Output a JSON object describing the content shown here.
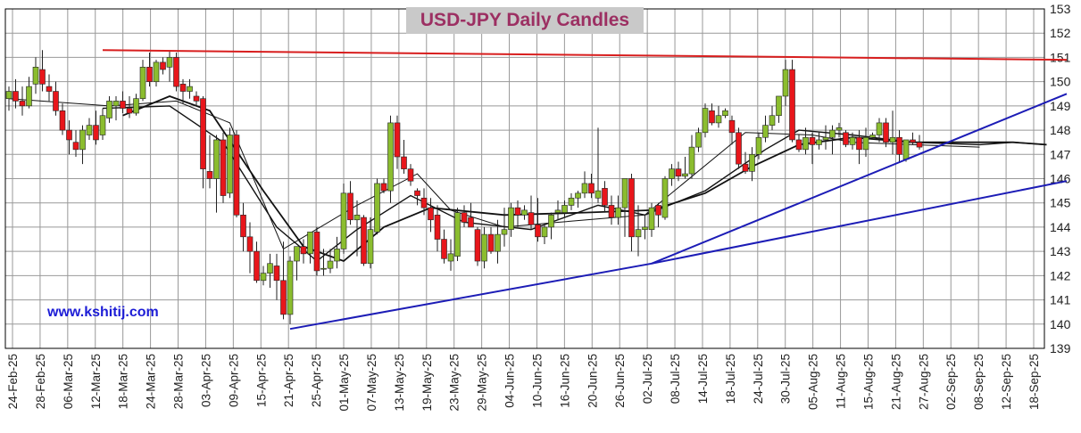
{
  "chart_data": {
    "type": "candlestick",
    "title": "USD-JPY Daily Candles",
    "watermark": "www.kshitij.com",
    "ylim": [
      139,
      153
    ],
    "y_ticks": [
      139,
      140,
      141,
      142,
      143,
      144,
      145,
      146,
      147,
      148,
      149,
      150,
      151,
      152,
      153
    ],
    "x_ticks": [
      "24-Feb-25",
      "28-Feb-25",
      "06-Mar-25",
      "12-Mar-25",
      "18-Mar-25",
      "24-Mar-25",
      "28-Mar-25",
      "03-Apr-25",
      "09-Apr-25",
      "15-Apr-25",
      "21-Apr-25",
      "25-Apr-25",
      "01-May-25",
      "07-May-25",
      "13-May-25",
      "19-May-25",
      "23-May-25",
      "29-May-25",
      "04-Jun-25",
      "10-Jun-25",
      "16-Jun-25",
      "20-Jun-25",
      "26-Jun-25",
      "02-Jul-25",
      "08-Jul-25",
      "14-Jul-25",
      "18-Jul-25",
      "24-Jul-25",
      "30-Jul-25",
      "05-Aug-25",
      "11-Aug-25",
      "15-Aug-25",
      "21-Aug-25",
      "27-Aug-25",
      "02-Sep-25",
      "08-Sep-25",
      "12-Sep-25",
      "18-Sep-25"
    ],
    "grid": true,
    "candles": [
      [
        149.3,
        149.8,
        148.8,
        149.6
      ],
      [
        149.6,
        150.1,
        148.9,
        149.2
      ],
      [
        149.2,
        149.8,
        148.6,
        149.0
      ],
      [
        149.0,
        150.2,
        148.9,
        149.8
      ],
      [
        149.9,
        151.0,
        149.5,
        150.6
      ],
      [
        150.5,
        151.3,
        149.6,
        149.9
      ],
      [
        149.8,
        150.3,
        149.2,
        149.6
      ],
      [
        149.6,
        150.0,
        148.6,
        148.8
      ],
      [
        148.8,
        149.1,
        147.8,
        148.0
      ],
      [
        148.0,
        148.4,
        147.0,
        147.6
      ],
      [
        147.5,
        148.0,
        146.9,
        147.2
      ],
      [
        147.2,
        148.2,
        146.6,
        148.0
      ],
      [
        147.8,
        148.5,
        147.6,
        148.2
      ],
      [
        148.2,
        148.8,
        147.4,
        147.6
      ],
      [
        147.8,
        148.9,
        147.6,
        148.6
      ],
      [
        148.5,
        149.4,
        148.3,
        149.2
      ],
      [
        149.0,
        149.4,
        148.4,
        149.2
      ],
      [
        149.2,
        149.6,
        148.7,
        148.9
      ],
      [
        148.9,
        149.4,
        148.5,
        148.7
      ],
      [
        148.7,
        149.5,
        148.6,
        149.3
      ],
      [
        149.3,
        150.9,
        149.2,
        150.6
      ],
      [
        150.6,
        151.2,
        149.8,
        150.0
      ],
      [
        150.0,
        150.9,
        149.8,
        150.8
      ],
      [
        150.8,
        151.0,
        150.3,
        150.5
      ],
      [
        150.6,
        151.3,
        150.0,
        151.0
      ],
      [
        151.0,
        151.2,
        149.6,
        149.8
      ],
      [
        149.9,
        150.1,
        149.1,
        149.6
      ],
      [
        149.6,
        150.1,
        149.3,
        149.8
      ],
      [
        149.4,
        149.6,
        149.0,
        149.2
      ],
      [
        149.3,
        149.4,
        145.6,
        146.4
      ],
      [
        146.3,
        147.8,
        145.6,
        146.0
      ],
      [
        146.0,
        147.8,
        144.6,
        147.6
      ],
      [
        147.6,
        147.9,
        145.0,
        145.3
      ],
      [
        145.4,
        148.1,
        145.2,
        147.8
      ],
      [
        147.8,
        148.0,
        144.4,
        144.5
      ],
      [
        144.5,
        145.0,
        143.0,
        143.6
      ],
      [
        143.6,
        144.2,
        142.1,
        143.0
      ],
      [
        143.0,
        143.4,
        141.7,
        141.8
      ],
      [
        141.8,
        142.4,
        141.6,
        142.1
      ],
      [
        142.1,
        142.9,
        141.5,
        142.5
      ],
      [
        142.4,
        142.9,
        141.0,
        141.8
      ],
      [
        141.8,
        143.4,
        140.2,
        140.4
      ],
      [
        140.4,
        142.8,
        140.0,
        142.6
      ],
      [
        142.6,
        143.2,
        141.8,
        143.2
      ],
      [
        143.2,
        143.5,
        142.5,
        142.9
      ],
      [
        142.9,
        143.8,
        142.5,
        143.8
      ],
      [
        143.8,
        144.0,
        142.0,
        142.2
      ],
      [
        142.3,
        143.1,
        142.0,
        142.3
      ],
      [
        142.3,
        143.1,
        142.1,
        142.6
      ],
      [
        142.6,
        143.6,
        142.3,
        143.1
      ],
      [
        143.1,
        145.8,
        142.9,
        145.4
      ],
      [
        145.4,
        145.9,
        144.1,
        144.3
      ],
      [
        144.3,
        145.1,
        142.8,
        144.5
      ],
      [
        144.4,
        144.5,
        142.4,
        142.5
      ],
      [
        142.5,
        144.4,
        142.3,
        143.9
      ],
      [
        143.8,
        146.0,
        143.7,
        145.8
      ],
      [
        145.8,
        146.0,
        145.4,
        145.5
      ],
      [
        145.5,
        148.6,
        145.0,
        148.3
      ],
      [
        148.3,
        148.6,
        146.4,
        146.9
      ],
      [
        146.9,
        147.6,
        146.2,
        146.4
      ],
      [
        146.4,
        146.6,
        145.7,
        145.9
      ],
      [
        145.5,
        145.6,
        144.9,
        145.3
      ],
      [
        145.2,
        145.6,
        144.5,
        144.8
      ],
      [
        144.8,
        145.2,
        143.8,
        144.3
      ],
      [
        144.5,
        144.9,
        143.0,
        143.5
      ],
      [
        143.5,
        143.9,
        142.5,
        142.7
      ],
      [
        142.6,
        143.5,
        142.2,
        142.9
      ],
      [
        142.8,
        144.8,
        142.6,
        144.6
      ],
      [
        144.6,
        144.9,
        144.0,
        144.2
      ],
      [
        144.4,
        145.0,
        144.0,
        144.0
      ],
      [
        143.9,
        144.0,
        142.4,
        142.6
      ],
      [
        142.6,
        144.0,
        142.3,
        143.7
      ],
      [
        143.7,
        144.0,
        142.9,
        143.0
      ],
      [
        143.0,
        144.3,
        142.5,
        143.7
      ],
      [
        143.7,
        144.8,
        143.2,
        143.9
      ],
      [
        143.9,
        145.0,
        143.6,
        144.8
      ],
      [
        144.8,
        145.1,
        144.0,
        144.5
      ],
      [
        144.5,
        144.9,
        144.3,
        144.7
      ],
      [
        144.6,
        145.3,
        143.9,
        144.1
      ],
      [
        144.1,
        145.2,
        143.4,
        143.6
      ],
      [
        143.6,
        144.1,
        143.3,
        144.0
      ],
      [
        144.0,
        144.6,
        143.5,
        144.5
      ],
      [
        144.6,
        145.1,
        144.3,
        144.7
      ],
      [
        144.6,
        145.1,
        144.4,
        144.9
      ],
      [
        144.9,
        145.4,
        144.7,
        145.2
      ],
      [
        145.2,
        145.5,
        144.8,
        145.4
      ],
      [
        145.4,
        146.3,
        145.2,
        145.8
      ],
      [
        145.8,
        146.2,
        145.2,
        145.4
      ],
      [
        145.2,
        148.1,
        145.0,
        145.5
      ],
      [
        145.6,
        145.9,
        144.6,
        144.9
      ],
      [
        144.9,
        145.3,
        144.1,
        144.4
      ],
      [
        144.4,
        145.3,
        144.1,
        144.8
      ],
      [
        144.8,
        146.0,
        143.6,
        146.0
      ],
      [
        146.0,
        146.2,
        143.0,
        143.6
      ],
      [
        143.6,
        144.9,
        142.8,
        143.9
      ],
      [
        143.9,
        144.5,
        143.5,
        144.0
      ],
      [
        143.9,
        145.0,
        143.6,
        144.8
      ],
      [
        144.9,
        145.0,
        144.0,
        144.5
      ],
      [
        144.4,
        146.1,
        144.3,
        146.0
      ],
      [
        146.0,
        146.6,
        145.7,
        146.4
      ],
      [
        146.4,
        146.7,
        145.9,
        146.1
      ],
      [
        146.1,
        146.9,
        146.0,
        146.2
      ],
      [
        146.2,
        147.8,
        146.0,
        147.3
      ],
      [
        147.3,
        148.1,
        147.1,
        147.9
      ],
      [
        147.9,
        149.1,
        147.7,
        148.9
      ],
      [
        148.8,
        149.1,
        148.2,
        148.3
      ],
      [
        148.3,
        149.0,
        148.1,
        148.6
      ],
      [
        148.6,
        148.9,
        148.5,
        148.8
      ],
      [
        148.4,
        148.6,
        147.4,
        147.9
      ],
      [
        147.9,
        148.1,
        146.4,
        146.6
      ],
      [
        146.6,
        147.1,
        146.2,
        146.3
      ],
      [
        146.3,
        147.3,
        145.9,
        147.0
      ],
      [
        147.0,
        147.9,
        146.8,
        147.7
      ],
      [
        147.7,
        148.6,
        147.5,
        148.2
      ],
      [
        148.2,
        149.0,
        148.0,
        148.6
      ],
      [
        148.6,
        149.4,
        148.3,
        149.4
      ],
      [
        149.4,
        150.9,
        149.0,
        150.5
      ],
      [
        150.5,
        150.9,
        147.5,
        147.6
      ],
      [
        147.6,
        147.8,
        147.1,
        147.2
      ],
      [
        147.2,
        148.1,
        147.0,
        147.7
      ],
      [
        147.7,
        147.9,
        146.6,
        147.4
      ],
      [
        147.4,
        147.9,
        147.2,
        147.6
      ],
      [
        147.6,
        148.2,
        147.2,
        147.7
      ],
      [
        147.7,
        148.2,
        147.0,
        148.0
      ],
      [
        148.0,
        148.3,
        147.7,
        148.1
      ],
      [
        147.9,
        148.0,
        147.3,
        147.4
      ],
      [
        147.4,
        147.9,
        147.2,
        147.7
      ],
      [
        147.7,
        148.0,
        146.6,
        147.2
      ],
      [
        147.2,
        148.1,
        146.9,
        147.7
      ],
      [
        147.7,
        147.9,
        147.6,
        147.8
      ],
      [
        147.8,
        148.5,
        147.5,
        148.3
      ],
      [
        148.3,
        148.5,
        147.3,
        147.5
      ],
      [
        147.5,
        148.8,
        147.0,
        147.7
      ],
      [
        147.7,
        148.0,
        146.7,
        147.0
      ],
      [
        146.8,
        147.6,
        146.7,
        147.6
      ],
      [
        147.6,
        147.9,
        147.4,
        147.5
      ],
      [
        147.5,
        147.8,
        147.2,
        147.3
      ]
    ],
    "series": [
      {
        "style": "thin-line",
        "values": [
          [
            0,
            149.3
          ],
          [
            15,
            149.0
          ],
          [
            25,
            149.2
          ],
          [
            33,
            148.3
          ],
          [
            41,
            143.1
          ],
          [
            52,
            144.9
          ],
          [
            61,
            146.2
          ],
          [
            66,
            144.7
          ],
          [
            74,
            144.0
          ],
          [
            82,
            144.2
          ],
          [
            95,
            144.5
          ],
          [
            110,
            147.9
          ],
          [
            120,
            147.8
          ],
          [
            126,
            147.5
          ],
          [
            135,
            147.4
          ],
          [
            145,
            147.3
          ]
        ]
      },
      {
        "style": "mid-line",
        "values": [
          [
            14,
            148.9
          ],
          [
            24,
            149.0
          ],
          [
            32,
            147.5
          ],
          [
            40,
            144.0
          ],
          [
            46,
            142.6
          ],
          [
            52,
            143.9
          ],
          [
            60,
            145.3
          ],
          [
            68,
            144.2
          ],
          [
            78,
            143.9
          ],
          [
            88,
            144.9
          ],
          [
            95,
            144.5
          ],
          [
            104,
            145.5
          ],
          [
            113,
            147.2
          ],
          [
            118,
            148.0
          ],
          [
            126,
            147.8
          ],
          [
            135,
            147.5
          ],
          [
            145,
            147.4
          ],
          [
            150,
            147.5
          ],
          [
            155,
            147.4
          ]
        ]
      },
      {
        "style": "thick-line",
        "values": [
          [
            17,
            148.6
          ],
          [
            24,
            149.4
          ],
          [
            30,
            148.8
          ],
          [
            38,
            145.5
          ],
          [
            44,
            143.2
          ],
          [
            50,
            142.6
          ],
          [
            56,
            144.0
          ],
          [
            63,
            144.8
          ],
          [
            74,
            144.5
          ],
          [
            86,
            144.6
          ],
          [
            96,
            144.7
          ],
          [
            104,
            145.4
          ],
          [
            111,
            146.5
          ],
          [
            118,
            147.4
          ],
          [
            126,
            147.7
          ],
          [
            135,
            147.5
          ],
          [
            145,
            147.5
          ],
          [
            150,
            147.5
          ],
          [
            155,
            147.4
          ]
        ]
      }
    ],
    "trendlines": [
      {
        "color": "#d81e1e",
        "points": [
          [
            14,
            151.3
          ],
          [
            158,
            150.9
          ]
        ]
      },
      {
        "color": "#1c1cb6",
        "points": [
          [
            42,
            139.8
          ],
          [
            96,
            142.5
          ],
          [
            158,
            145.9
          ]
        ]
      },
      {
        "color": "#1c1cb6",
        "points": [
          [
            96,
            142.5
          ],
          [
            158,
            149.5
          ]
        ]
      }
    ],
    "colors": {
      "up": "#8bbd2f",
      "down": "#e8161b",
      "grid": "#999999",
      "frame": "#000000"
    }
  }
}
